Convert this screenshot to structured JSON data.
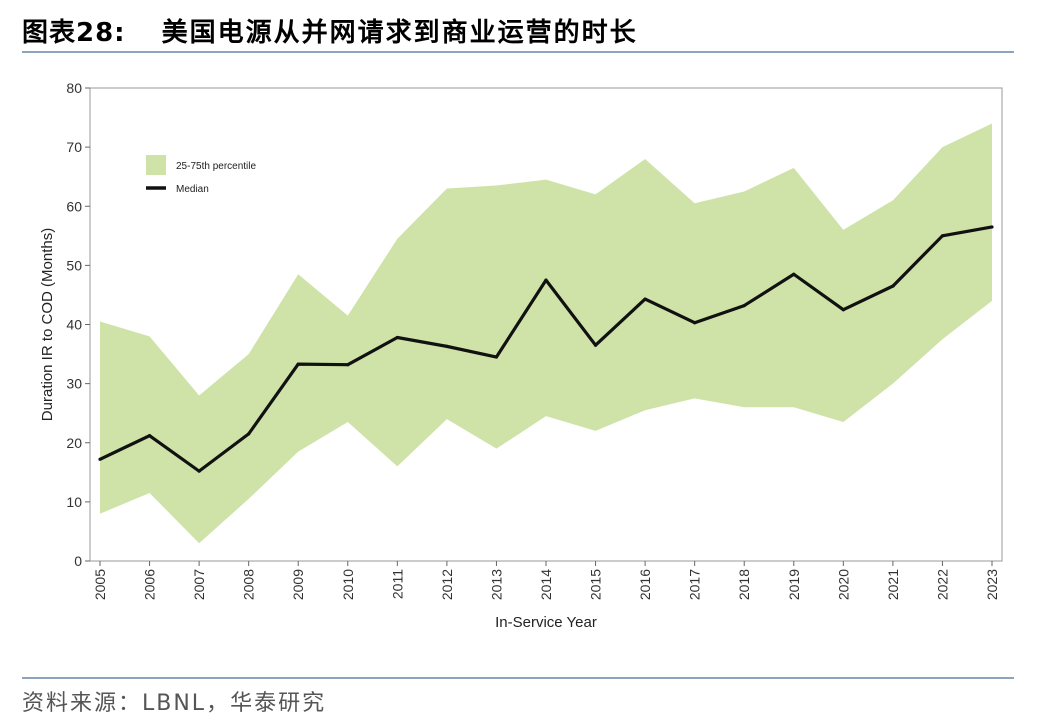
{
  "header": {
    "figure_label": "图表28:",
    "title": "美国电源从并网请求到商业运营的时长"
  },
  "footer": {
    "source": "资料来源：LBNL，华泰研究"
  },
  "colors": {
    "band": "#cfe3a8",
    "median": "#111111",
    "frame": "#9a9a9a",
    "rule": "#8ea3bd"
  },
  "chart_data": {
    "type": "area",
    "title": "",
    "xlabel": "In-Service Year",
    "ylabel": "Duration IR to COD (Months)",
    "ylim": [
      0,
      80
    ],
    "yticks": [
      0,
      10,
      20,
      30,
      40,
      50,
      60,
      70,
      80
    ],
    "x": [
      "2005",
      "2006",
      "2007",
      "2008",
      "2009",
      "2010",
      "2011",
      "2012",
      "2013",
      "2014",
      "2015",
      "2016",
      "2017",
      "2018",
      "2019",
      "2020",
      "2021",
      "2022",
      "2023"
    ],
    "series": [
      {
        "name": "25-75th percentile",
        "kind": "band",
        "lower": [
          8,
          11.5,
          3,
          10.5,
          18.5,
          23.5,
          16,
          24,
          19,
          24.5,
          22,
          25.5,
          27.5,
          26,
          26,
          23.5,
          30,
          37.5,
          44
        ],
        "upper": [
          40.5,
          38,
          28,
          35,
          48.5,
          41.5,
          54.5,
          63,
          63.5,
          64.5,
          62,
          68,
          60.5,
          62.5,
          66.5,
          56,
          61,
          70,
          74
        ]
      },
      {
        "name": "Median",
        "kind": "line",
        "values": [
          17.2,
          21.2,
          15.2,
          21.5,
          33.3,
          33.2,
          37.8,
          36.3,
          34.5,
          47.5,
          36.5,
          44.3,
          40.3,
          43.2,
          48.5,
          42.5,
          46.5,
          55,
          56.5
        ]
      }
    ],
    "grid": false,
    "legend_position": "top-left"
  }
}
